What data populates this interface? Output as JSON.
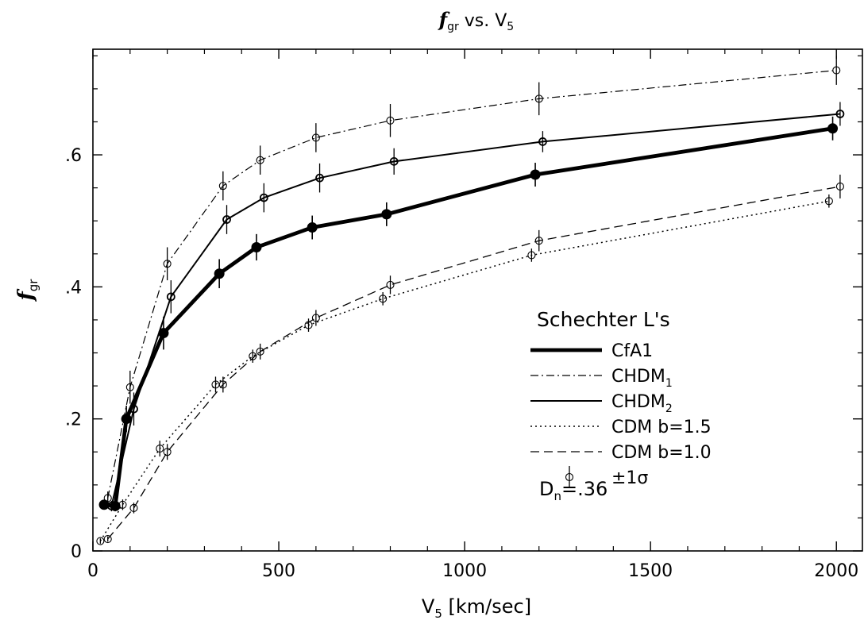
{
  "chart_data": {
    "type": "line",
    "title": {
      "main": "f",
      "sub": "gr",
      "rest": " vs. V",
      "rest_sub": "5"
    },
    "xlabel": {
      "main": "V",
      "sub": "5",
      "rest": " [km/sec]"
    },
    "ylabel": {
      "main": "f",
      "sub": "gr"
    },
    "xlim": [
      0,
      2070
    ],
    "ylim": [
      0,
      0.76
    ],
    "x_ticks": [
      0,
      500,
      1000,
      1500,
      2000
    ],
    "x_tick_labels": [
      "0",
      "500",
      "1000",
      "1500",
      "2000"
    ],
    "y_ticks": [
      0,
      0.2,
      0.4,
      0.6
    ],
    "y_tick_labels": [
      "0",
      ".2",
      ".4",
      ".6"
    ],
    "grid": false,
    "legend": {
      "placement": "lower-right",
      "title": "Schechter L's",
      "entries": [
        {
          "series": 0,
          "label": "CfA1"
        },
        {
          "series": 1,
          "label": "CHDM",
          "sub": "1"
        },
        {
          "series": 2,
          "label": "CHDM",
          "sub": "2"
        },
        {
          "series": 3,
          "label": "CDM  b=1.5"
        },
        {
          "series": 4,
          "label": "CDM  b=1.0"
        },
        {
          "errorbar": true,
          "label": "±1σ"
        }
      ],
      "note": {
        "main": "D",
        "sub": "n",
        "rest": "=.36"
      }
    },
    "series": [
      {
        "style": "thick-solid",
        "marker": "filled-circle",
        "x": [
          30,
          60,
          90,
          190,
          340,
          440,
          590,
          790,
          1190,
          1990
        ],
        "y": [
          0.07,
          0.068,
          0.2,
          0.33,
          0.42,
          0.46,
          0.49,
          0.51,
          0.57,
          0.64
        ],
        "err": [
          0.005,
          0.008,
          0.02,
          0.025,
          0.022,
          0.02,
          0.018,
          0.018,
          0.018,
          0.018
        ]
      },
      {
        "style": "dash-dot",
        "marker": "open-circle",
        "x": [
          40,
          100,
          200,
          350,
          450,
          600,
          800,
          1200,
          2000
        ],
        "y": [
          0.08,
          0.248,
          0.435,
          0.553,
          0.592,
          0.626,
          0.652,
          0.685,
          0.728
        ],
        "err": [
          0.01,
          0.025,
          0.025,
          0.022,
          0.022,
          0.022,
          0.025,
          0.025,
          0.022
        ]
      },
      {
        "style": "solid",
        "marker": "open-circle",
        "x": [
          50,
          110,
          210,
          360,
          460,
          610,
          810,
          1210,
          2010
        ],
        "y": [
          0.068,
          0.215,
          0.385,
          0.502,
          0.535,
          0.565,
          0.59,
          0.62,
          0.662
        ],
        "err": [
          0.008,
          0.025,
          0.025,
          0.022,
          0.022,
          0.022,
          0.02,
          0.016,
          0.018
        ]
      },
      {
        "style": "dotted",
        "marker": "open-circle",
        "x": [
          20,
          80,
          180,
          330,
          430,
          580,
          780,
          1180,
          1980
        ],
        "y": [
          0.015,
          0.07,
          0.155,
          0.252,
          0.295,
          0.342,
          0.382,
          0.448,
          0.53
        ],
        "err": [
          0.004,
          0.008,
          0.012,
          0.012,
          0.01,
          0.01,
          0.01,
          0.01,
          0.01
        ]
      },
      {
        "style": "dashed",
        "marker": "open-circle",
        "x": [
          40,
          110,
          200,
          350,
          450,
          600,
          800,
          1200,
          2010
        ],
        "y": [
          0.018,
          0.065,
          0.15,
          0.252,
          0.302,
          0.353,
          0.403,
          0.47,
          0.552
        ],
        "err": [
          0.004,
          0.008,
          0.012,
          0.012,
          0.012,
          0.012,
          0.014,
          0.016,
          0.018
        ]
      }
    ]
  }
}
